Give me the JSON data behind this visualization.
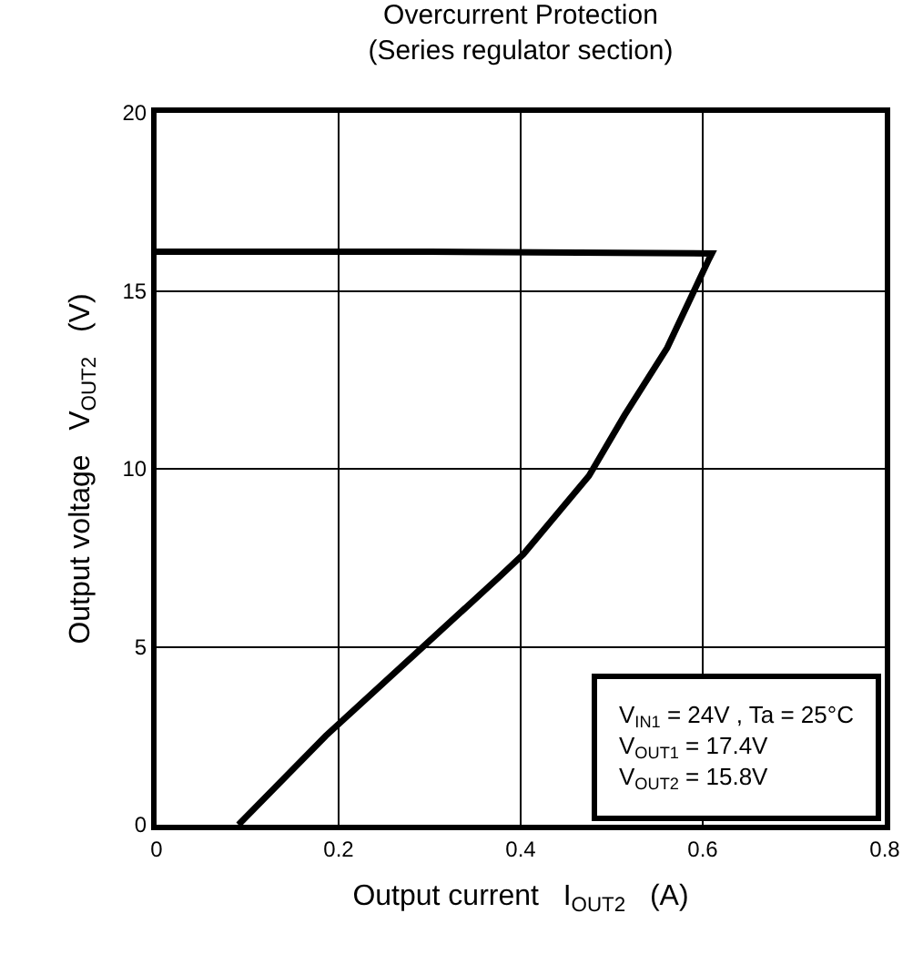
{
  "chart_data": {
    "type": "line",
    "title": "Overcurrent Protection",
    "subtitle": "(Series regulator section)",
    "xlabel": "Output current   I$_{OUT2}$   (A)",
    "ylabel": "Output voltage   V$_{OUT2}$   (V)",
    "series": [
      {
        "color": "#000000",
        "x": [
          0,
          0.3,
          0.61,
          0.607,
          0.561,
          0.514,
          0.475,
          0.403,
          0.376,
          0.297,
          0.186,
          0.09
        ],
        "values": [
          16.1,
          16.1,
          16.05,
          15.9,
          13.4,
          11.5,
          9.8,
          7.6,
          6.95,
          5.1,
          2.5,
          0
        ]
      }
    ],
    "xlim": [
      0,
      0.8
    ],
    "xticks": [
      0,
      0.2,
      0.4,
      0.6,
      0.8
    ],
    "ylim": [
      0,
      20
    ],
    "yticks": [
      0,
      5,
      10,
      15,
      20
    ],
    "grid": true,
    "marker": "none",
    "line_style": "solid",
    "annotations": [
      "V$_{IN1}$ = 24V , Ta = 25°C",
      "V$_{OUT1}$ = 17.4V",
      "V$_{OUT2}$ = 15.8V"
    ]
  }
}
